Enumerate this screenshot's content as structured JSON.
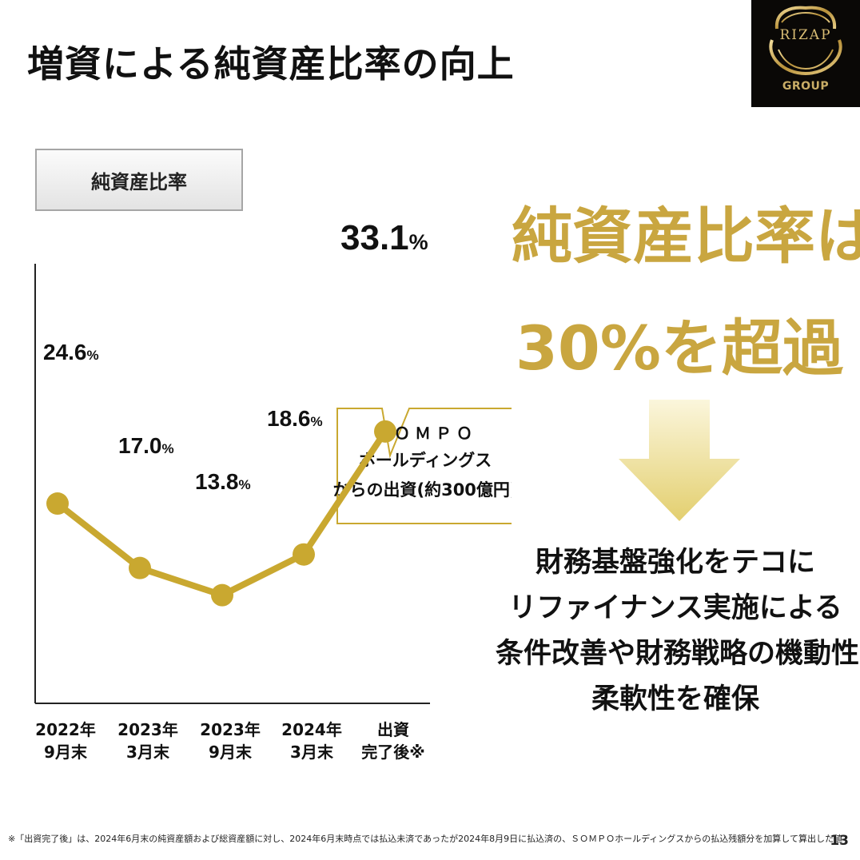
{
  "page": {
    "title": "増資による純資産比率の向上",
    "page_number": "13",
    "footnote": "※「出資完了後」は、2024年6月末の純資産額および総資産額に対し、2024年6月末時点では払込未済であったが2024年8月9日に払込済の、ＳＯＭＰＯホールディングスからの払込残額分を加算して算出した値"
  },
  "logo": {
    "word": "RIZAP",
    "sub": "GROUP"
  },
  "chart_label": "純資産比率",
  "chart_data": {
    "type": "line",
    "title": "純資産比率",
    "categories": [
      [
        "2022年",
        "9月末"
      ],
      [
        "2023年",
        "3月末"
      ],
      [
        "2023年",
        "9月末"
      ],
      [
        "2024年",
        "3月末"
      ],
      [
        "出資",
        "完了後※"
      ]
    ],
    "values": [
      24.6,
      17.0,
      13.8,
      18.6,
      33.1
    ],
    "value_labels": [
      "24.6",
      "17.0",
      "13.8",
      "18.6",
      "33.1"
    ],
    "unit": "%",
    "ylim": [
      5,
      38
    ],
    "grid": false,
    "line_color": "#c9a830",
    "callout": {
      "points_to": 4,
      "lines": [
        "ＳＯＭＰＯ",
        "ホールディングス",
        "からの出資(約300億円)"
      ]
    }
  },
  "headline": [
    "純資産比率は",
    "30%を超過"
  ],
  "message": [
    "財務基盤強化をテコに",
    "リファイナンス実施による",
    "条件改善や財務戦略の機動性・",
    "柔軟性を確保"
  ],
  "colors": {
    "gold": "#c9a640",
    "gold_light": "#f4ebc0",
    "text": "#111111"
  }
}
